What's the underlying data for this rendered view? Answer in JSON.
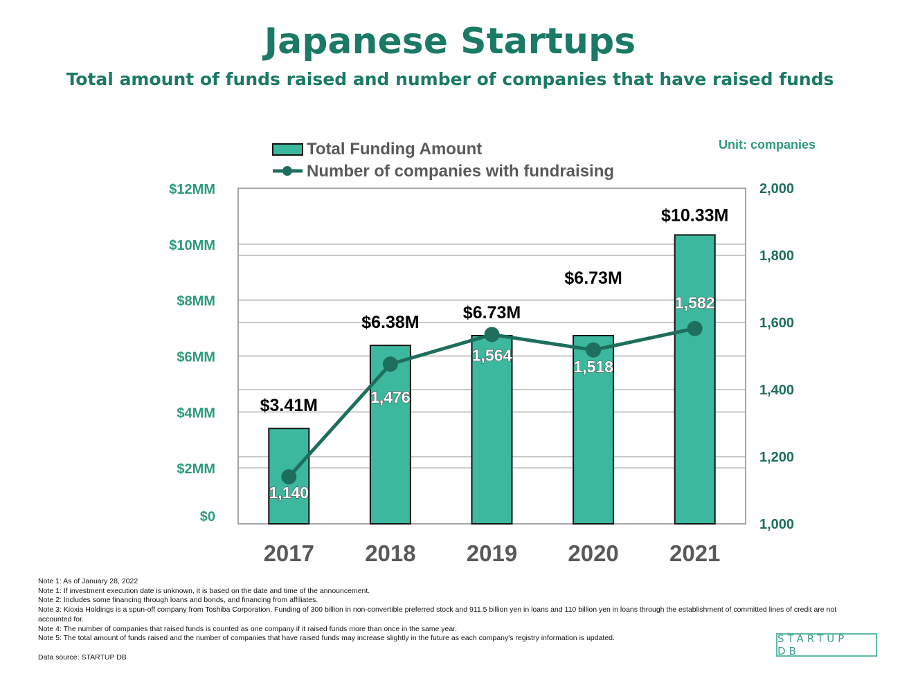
{
  "title": "Japanese Startups",
  "subtitle": "Total amount of funds raised and number of companies that have raised funds",
  "unit_label": "Unit: companies",
  "colors": {
    "bar": "#3cb89e",
    "line": "#1e6e5d",
    "title": "#1b7a65",
    "axis_text": "#2e9a7c",
    "right_axis_text": "#1e6e5d"
  },
  "chart_data": {
    "type": "bar",
    "categories": [
      "2017",
      "2018",
      "2019",
      "2020",
      "2021"
    ],
    "series": [
      {
        "name": "Total Funding Amount",
        "type": "bar",
        "axis": "left",
        "values": [
          3.41,
          6.38,
          6.73,
          6.73,
          10.33
        ],
        "labels": [
          "$3.41M",
          "$6.38M",
          "$6.73M",
          "$6.73M",
          "$10.33M"
        ]
      },
      {
        "name": "Number of companies with fundraising",
        "type": "line",
        "axis": "right",
        "values": [
          1140,
          1476,
          1564,
          1518,
          1582
        ],
        "labels": [
          "1,140",
          "1,476",
          "1,564",
          "1,518",
          "1,582"
        ]
      }
    ],
    "left_axis": {
      "ticks": [
        "$0",
        "$2MM",
        "$4MM",
        "$6MM",
        "$8MM",
        "$10MM",
        "$12MM"
      ],
      "ylim": [
        0,
        12
      ]
    },
    "right_axis": {
      "ticks": [
        "1,000",
        "1,200",
        "1,400",
        "1,600",
        "1,800",
        "2,000"
      ],
      "ylim": [
        1000,
        2000
      ]
    },
    "legend": "top",
    "grid": true
  },
  "notes": [
    "Note 1: As of January 28, 2022",
    "Note 1: If investment execution date is unknown, it is based on the date and time of the announcement.",
    "Note 2: Includes some financing through loans and bonds, and financing from affiliates.",
    "Note 3: Kioxia Holdings is a spun-off company from Toshiba Corporation. Funding of 300 billion in non-convertible preferred stock and 911.5 billion yen in loans and 110 billion yen in loans through the establishment of committed lines of credit are not accounted for.",
    "Note 4: The number of companies that raised funds is counted as one company if it raised funds more than once in the same year.",
    "Note 5: The total amount of funds raised and the number of companies that have raised funds may increase slightly in the future as each company's registry information is updated."
  ],
  "source": "Data source: STARTUP DB",
  "logo_text": "STARTUP DB"
}
